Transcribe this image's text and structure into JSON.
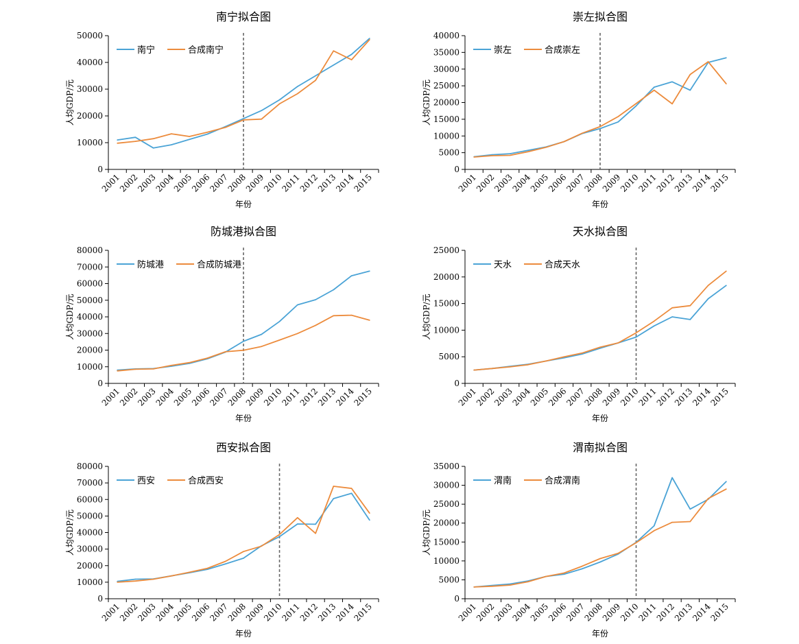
{
  "colors": {
    "actual": "#4aa3d6",
    "synthetic": "#ec8b3c",
    "cutoff": "#666666"
  },
  "x_axis_label": "年份",
  "y_axis_label": "人均GDP/元",
  "chart_data": [
    {
      "type": "line",
      "title": "南宁拟合图",
      "xlabel": "年份",
      "ylabel": "人均GDP/元",
      "x": [
        "2001",
        "2002",
        "2003",
        "2004",
        "2005",
        "2006",
        "2007",
        "2008",
        "2009",
        "2010",
        "2011",
        "2012",
        "2013",
        "2014",
        "2015"
      ],
      "ylim": [
        0,
        50000
      ],
      "yticks": [
        "0",
        "10000",
        "20000",
        "30000",
        "40000",
        "50000"
      ],
      "cutoff": "2008",
      "legend": "top-left",
      "series": [
        {
          "name": "南宁",
          "values": [
            11000,
            12000,
            8000,
            9200,
            11200,
            13200,
            16000,
            19000,
            22000,
            26000,
            31000,
            35000,
            39000,
            43000,
            49000
          ]
        },
        {
          "name": "合成南宁",
          "values": [
            9800,
            10500,
            11500,
            13300,
            12300,
            13900,
            15700,
            18500,
            18800,
            24500,
            28300,
            33300,
            44300,
            41000,
            48500
          ]
        }
      ]
    },
    {
      "type": "line",
      "title": "崇左拟合图",
      "xlabel": "年份",
      "ylabel": "人均GDP/元",
      "x": [
        "2001",
        "2002",
        "2003",
        "2004",
        "2005",
        "2006",
        "2007",
        "2008",
        "2009",
        "2010",
        "2011",
        "2012",
        "2013",
        "2014",
        "2015"
      ],
      "ylim": [
        0,
        40000
      ],
      "yticks": [
        "0",
        "5000",
        "10000",
        "15000",
        "20000",
        "25000",
        "30000",
        "35000",
        "40000"
      ],
      "cutoff": "2008",
      "legend": "top-left",
      "series": [
        {
          "name": "崇左",
          "values": [
            3800,
            4400,
            4700,
            5700,
            6700,
            8300,
            10700,
            12200,
            14200,
            19000,
            24600,
            26200,
            23700,
            32000,
            33400
          ]
        },
        {
          "name": "合成崇左",
          "values": [
            3700,
            4100,
            4200,
            5300,
            6600,
            8300,
            10800,
            12800,
            15800,
            19700,
            23700,
            19600,
            28400,
            32200,
            25600
          ]
        }
      ]
    },
    {
      "type": "line",
      "title": "防城港拟合图",
      "xlabel": "年份",
      "ylabel": "人均GDP/元",
      "x": [
        "2001",
        "2002",
        "2003",
        "2004",
        "2005",
        "2006",
        "2007",
        "2008",
        "2009",
        "2010",
        "2011",
        "2012",
        "2013",
        "2014",
        "2015"
      ],
      "ylim": [
        0,
        80000
      ],
      "yticks": [
        "0",
        "10000",
        "20000",
        "30000",
        "40000",
        "50000",
        "60000",
        "70000",
        "80000"
      ],
      "cutoff": "2008",
      "legend": "top-left",
      "series": [
        {
          "name": "防城港",
          "values": [
            8000,
            8700,
            8900,
            10300,
            12000,
            14800,
            18800,
            25300,
            29500,
            37200,
            47200,
            50300,
            56300,
            64700,
            67500
          ]
        },
        {
          "name": "合成防城港",
          "values": [
            7500,
            8500,
            8700,
            10800,
            12500,
            15200,
            19000,
            19900,
            22200,
            26000,
            30000,
            34900,
            40700,
            41000,
            38000
          ]
        }
      ]
    },
    {
      "type": "line",
      "title": "天水拟合图",
      "xlabel": "年份",
      "ylabel": "人均GDP/元",
      "x": [
        "2001",
        "2002",
        "2003",
        "2004",
        "2005",
        "2006",
        "2007",
        "2008",
        "2009",
        "2010",
        "2011",
        "2012",
        "2013",
        "2014",
        "2015"
      ],
      "ylim": [
        0,
        25000
      ],
      "yticks": [
        "0",
        "5000",
        "10000",
        "15000",
        "20000",
        "25000"
      ],
      "cutoff": "2010",
      "legend": "top-left",
      "series": [
        {
          "name": "天水",
          "values": [
            2500,
            2800,
            3200,
            3600,
            4200,
            4800,
            5500,
            6600,
            7600,
            8700,
            10800,
            12500,
            12000,
            15900,
            18400
          ]
        },
        {
          "name": "合成天水",
          "values": [
            2500,
            2800,
            3100,
            3500,
            4200,
            5000,
            5700,
            6800,
            7600,
            9500,
            11700,
            14200,
            14600,
            18400,
            21100
          ]
        }
      ]
    },
    {
      "type": "line",
      "title": "西安拟合图",
      "xlabel": "年份",
      "ylabel": "人均GDP/元",
      "x": [
        "2001",
        "2002",
        "2003",
        "2004",
        "2005",
        "2006",
        "2007",
        "2008",
        "2009",
        "2010",
        "2011",
        "2012",
        "2013",
        "2014",
        "2015"
      ],
      "ylim": [
        0,
        80000
      ],
      "yticks": [
        "0",
        "10000",
        "20000",
        "30000",
        "40000",
        "50000",
        "60000",
        "70000",
        "80000"
      ],
      "cutoff": "2010",
      "legend": "top-left",
      "series": [
        {
          "name": "西安",
          "values": [
            10500,
            11800,
            12000,
            13800,
            15700,
            17800,
            21000,
            24500,
            32000,
            37500,
            45200,
            45000,
            60500,
            63700,
            47500
          ]
        },
        {
          "name": "合成西安",
          "values": [
            10000,
            10700,
            11800,
            13800,
            16000,
            18400,
            22600,
            28500,
            31800,
            38800,
            49000,
            39500,
            68000,
            66700,
            51700
          ]
        }
      ]
    },
    {
      "type": "line",
      "title": "渭南拟合图",
      "xlabel": "年份",
      "ylabel": "人均GDP/元",
      "x": [
        "2001",
        "2002",
        "2003",
        "2004",
        "2005",
        "2006",
        "2007",
        "2008",
        "2009",
        "2010",
        "2011",
        "2012",
        "2013",
        "2014",
        "2015"
      ],
      "ylim": [
        0,
        35000
      ],
      "yticks": [
        "0",
        "5000",
        "10000",
        "15000",
        "20000",
        "25000",
        "30000",
        "35000"
      ],
      "cutoff": "2010",
      "legend": "top-left",
      "series": [
        {
          "name": "渭南",
          "values": [
            3100,
            3500,
            3900,
            4700,
            5900,
            6500,
            7900,
            9700,
            11800,
            14900,
            19300,
            32000,
            23700,
            26300,
            31000
          ]
        },
        {
          "name": "合成渭南",
          "values": [
            3100,
            3300,
            3600,
            4500,
            5900,
            6800,
            8600,
            10600,
            12000,
            14800,
            18000,
            20200,
            20400,
            26500,
            29000
          ]
        }
      ]
    }
  ]
}
